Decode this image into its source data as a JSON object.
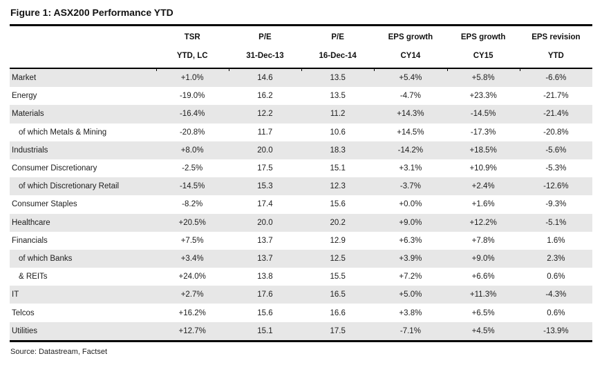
{
  "figure": {
    "title": "Figure 1: ASX200 Performance YTD",
    "source": "Source: Datastream, Factset"
  },
  "style": {
    "alt_row_bg": "#e7e7e7",
    "rule_color": "#000000",
    "text_color": "#1c1c1c"
  },
  "table": {
    "columns": [
      {
        "line1": "",
        "line2": ""
      },
      {
        "line1": "TSR",
        "line2": "YTD, LC"
      },
      {
        "line1": "P/E",
        "line2": "31-Dec-13"
      },
      {
        "line1": "P/E",
        "line2": "16-Dec-14"
      },
      {
        "line1": "EPS growth",
        "line2": "CY14"
      },
      {
        "line1": "EPS growth",
        "line2": "CY15"
      },
      {
        "line1": "EPS revision",
        "line2": "YTD"
      }
    ],
    "rows": [
      {
        "label": "Market",
        "indent": false,
        "values": [
          "+1.0%",
          "14.6",
          "13.5",
          "+5.4%",
          "+5.8%",
          "-6.6%"
        ]
      },
      {
        "label": "Energy",
        "indent": false,
        "values": [
          "-19.0%",
          "16.2",
          "13.5",
          "-4.7%",
          "+23.3%",
          "-21.7%"
        ]
      },
      {
        "label": "Materials",
        "indent": false,
        "values": [
          "-16.4%",
          "12.2",
          "11.2",
          "+14.3%",
          "-14.5%",
          "-21.4%"
        ]
      },
      {
        "label": "of which Metals & Mining",
        "indent": true,
        "values": [
          "-20.8%",
          "11.7",
          "10.6",
          "+14.5%",
          "-17.3%",
          "-20.8%"
        ]
      },
      {
        "label": "Industrials",
        "indent": false,
        "values": [
          "+8.0%",
          "20.0",
          "18.3",
          "-14.2%",
          "+18.5%",
          "-5.6%"
        ]
      },
      {
        "label": "Consumer Discretionary",
        "indent": false,
        "values": [
          "-2.5%",
          "17.5",
          "15.1",
          "+3.1%",
          "+10.9%",
          "-5.3%"
        ]
      },
      {
        "label": "of which Discretionary Retail",
        "indent": true,
        "values": [
          "-14.5%",
          "15.3",
          "12.3",
          "-3.7%",
          "+2.4%",
          "-12.6%"
        ]
      },
      {
        "label": "Consumer Staples",
        "indent": false,
        "values": [
          "-8.2%",
          "17.4",
          "15.6",
          "+0.0%",
          "+1.6%",
          "-9.3%"
        ]
      },
      {
        "label": "Healthcare",
        "indent": false,
        "values": [
          "+20.5%",
          "20.0",
          "20.2",
          "+9.0%",
          "+12.2%",
          "-5.1%"
        ]
      },
      {
        "label": "Financials",
        "indent": false,
        "values": [
          "+7.5%",
          "13.7",
          "12.9",
          "+6.3%",
          "+7.8%",
          "1.6%"
        ]
      },
      {
        "label": "of which Banks",
        "indent": true,
        "values": [
          "+3.4%",
          "13.7",
          "12.5",
          "+3.9%",
          "+9.0%",
          "2.3%"
        ]
      },
      {
        "label": "& REITs",
        "indent": true,
        "values": [
          "+24.0%",
          "13.8",
          "15.5",
          "+7.2%",
          "+6.6%",
          "0.6%"
        ]
      },
      {
        "label": "IT",
        "indent": false,
        "values": [
          "+2.7%",
          "17.6",
          "16.5",
          "+5.0%",
          "+11.3%",
          "-4.3%"
        ]
      },
      {
        "label": "Telcos",
        "indent": false,
        "values": [
          "+16.2%",
          "15.6",
          "16.6",
          "+3.8%",
          "+6.5%",
          "0.6%"
        ]
      },
      {
        "label": "Utilities",
        "indent": false,
        "values": [
          "+12.7%",
          "15.1",
          "17.5",
          "-7.1%",
          "+4.5%",
          "-13.9%"
        ]
      }
    ]
  }
}
